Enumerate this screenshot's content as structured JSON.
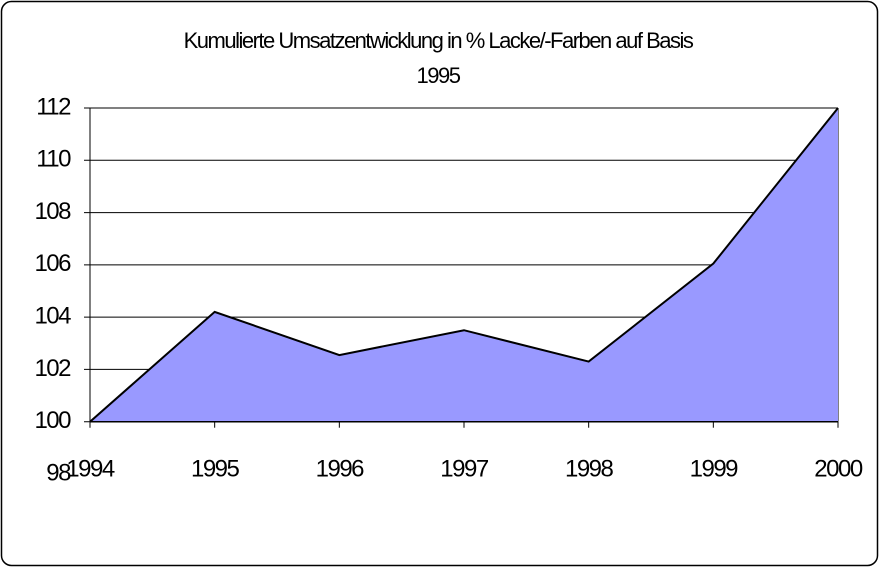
{
  "chart_data": {
    "type": "area",
    "title": [
      "Kumulierte Umsatzentwicklung in % Lacke/-Farben auf Basis",
      "1995"
    ],
    "categories": [
      "1994",
      "1995",
      "1996",
      "1997",
      "1998",
      "1999",
      "2000"
    ],
    "values": [
      100,
      104.2,
      102.55,
      103.5,
      102.3,
      106.05,
      112
    ],
    "color": "#9999ff",
    "ylim": [
      98,
      112
    ],
    "yticks": [
      98,
      100,
      102,
      104,
      106,
      108,
      110,
      112
    ],
    "x_axis_at": 100,
    "grid": true
  }
}
